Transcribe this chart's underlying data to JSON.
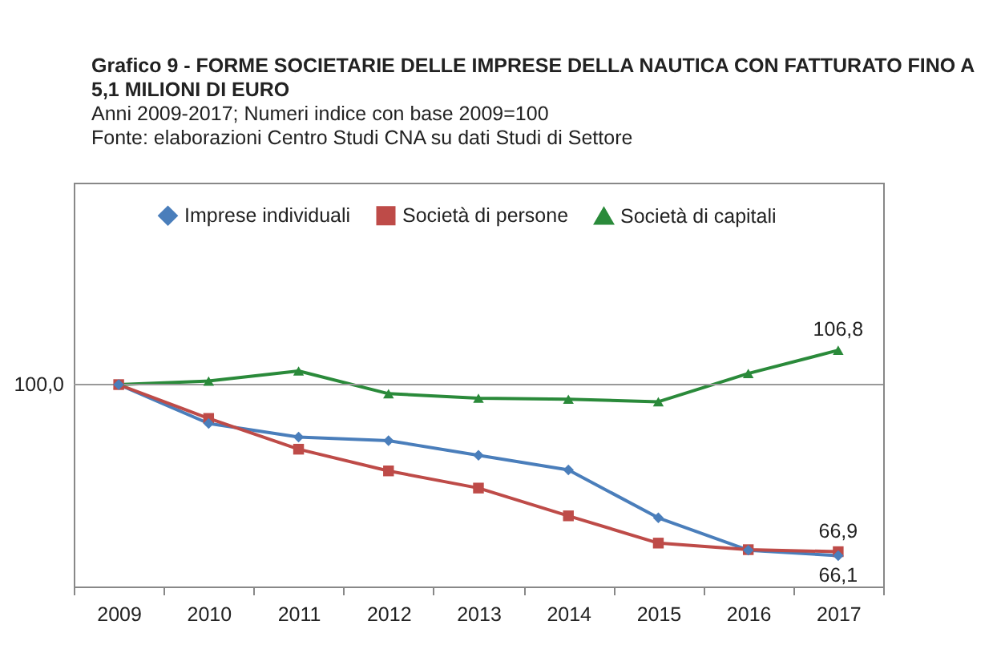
{
  "chart_data": {
    "type": "line",
    "title": "Grafico 9 - FORME SOCIETARIE DELLE IMPRESE DELLA NAUTICA CON FATTURATO FINO A 5,1 MILIONI DI EURO",
    "subtitle": "Anni 2009-2017; Numeri indice con base 2009=100",
    "annotations": [
      "Fonte: elaborazioni Centro Studi CNA su dati Studi di Settore"
    ],
    "categories": [
      "2009",
      "2010",
      "2011",
      "2012",
      "2013",
      "2014",
      "2015",
      "2016",
      "2017"
    ],
    "series": [
      {
        "name": "Imprese individuali",
        "color": "#4a7ebb",
        "marker": "diamond",
        "values": [
          100,
          92.3,
          89.6,
          88.9,
          86.0,
          83.1,
          73.6,
          67.2,
          66.1
        ],
        "value_labels": [
          null,
          null,
          null,
          null,
          null,
          null,
          null,
          null,
          "66,1"
        ]
      },
      {
        "name": "Società di persone",
        "color": "#be4b48",
        "marker": "square",
        "values": [
          100,
          93.3,
          87.2,
          82.9,
          79.5,
          74.0,
          68.6,
          67.3,
          66.9
        ],
        "value_labels": [
          null,
          null,
          null,
          null,
          null,
          null,
          null,
          null,
          "66,9"
        ]
      },
      {
        "name": "Società di capitali",
        "color": "#2a8a3a",
        "marker": "triangle",
        "values": [
          100,
          100.7,
          102.7,
          98.2,
          97.3,
          97.1,
          96.6,
          102.2,
          106.8
        ],
        "value_labels": [
          null,
          null,
          null,
          null,
          null,
          null,
          null,
          null,
          "106,8"
        ]
      }
    ],
    "ylim": [
      60,
      140
    ],
    "ref_lines": [
      {
        "axis": "y",
        "value": 100,
        "label": "100,0",
        "color": "#999999"
      }
    ],
    "legend": "top",
    "line_style": "solid"
  }
}
